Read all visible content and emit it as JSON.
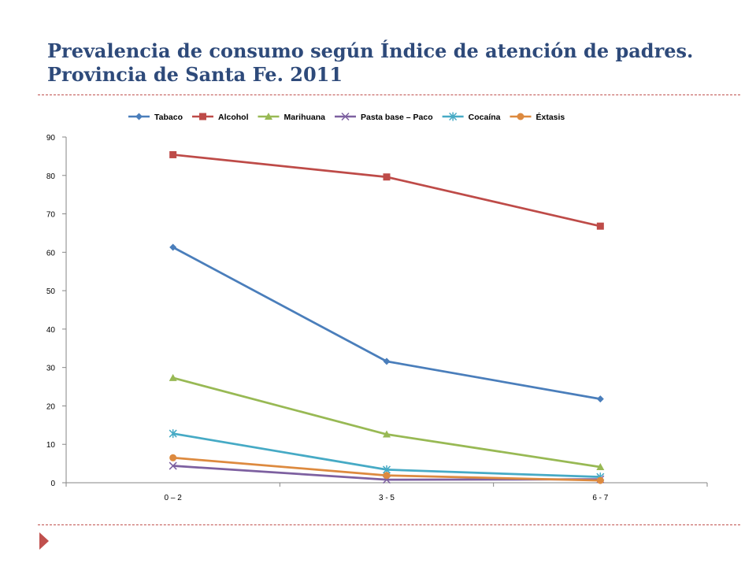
{
  "slide": {
    "title_line1": "Prevalencia de consumo según Índice de atención de padres.",
    "title_line2": "Provincia de Santa Fe. 2011",
    "accent_color": "#c0504d",
    "title_color": "#2e4a7a"
  },
  "chart_data": {
    "type": "line",
    "title": "",
    "xlabel": "",
    "ylabel": "",
    "categories": [
      "0 – 2",
      "3 - 5",
      "6 - 7"
    ],
    "ylim": [
      0,
      90
    ],
    "yticks": [
      0,
      10,
      20,
      30,
      40,
      50,
      60,
      70,
      80,
      90
    ],
    "grid": false,
    "legend_position": "top",
    "series": [
      {
        "name": "Tabaco",
        "values": [
          61.3,
          31.6,
          21.8
        ],
        "color": "#4a7ebb",
        "marker": "diamond"
      },
      {
        "name": "Alcohol",
        "values": [
          85.4,
          79.6,
          66.8
        ],
        "color": "#be4b48",
        "marker": "square"
      },
      {
        "name": "Marihuana",
        "values": [
          27.3,
          12.6,
          4.1
        ],
        "color": "#98b954",
        "marker": "triangle"
      },
      {
        "name": "Pasta base – Paco",
        "values": [
          4.4,
          0.8,
          0.9
        ],
        "color": "#7d60a0",
        "marker": "x"
      },
      {
        "name": "Cocaína",
        "values": [
          12.8,
          3.4,
          1.5
        ],
        "color": "#46aac5",
        "marker": "star"
      },
      {
        "name": "Éxtasis",
        "values": [
          6.5,
          1.9,
          0.6
        ],
        "color": "#dd8a3f",
        "marker": "circle"
      }
    ]
  }
}
